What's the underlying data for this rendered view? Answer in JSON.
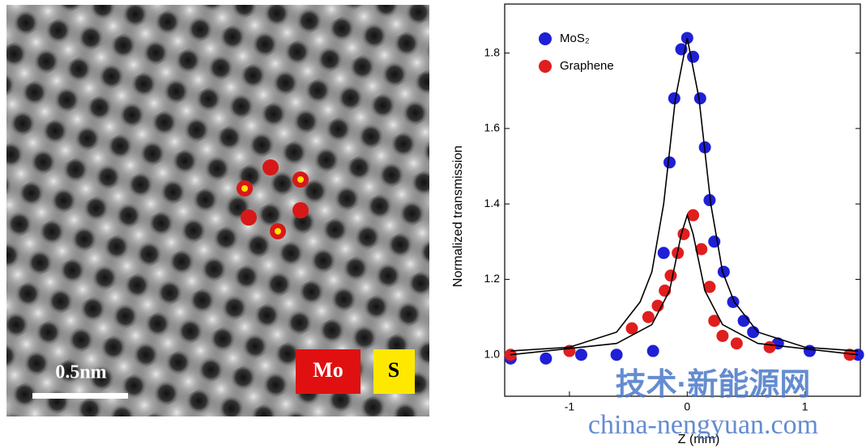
{
  "image": {
    "scale_bar": "0.5nm",
    "legend": [
      "Mo",
      "S"
    ]
  },
  "watermark": {
    "line1": "技术·新能源网",
    "line2": "china-nengyuan.com"
  },
  "chart_data": {
    "type": "scatter",
    "x_label": "Z (mm)",
    "y_label": "Normalized transmission",
    "xlim": [
      -1.55,
      1.47
    ],
    "ylim": [
      0.89,
      1.93
    ],
    "xticks": [
      -1,
      0,
      1
    ],
    "yticks": [
      {
        "value": 1.0,
        "label": "1.0"
      },
      {
        "value": 1.2,
        "label": "1.2"
      },
      {
        "value": 1.4,
        "label": "1.4"
      },
      {
        "value": 1.6,
        "label": "1.6"
      },
      {
        "value": 1.8,
        "label": "1.8"
      }
    ],
    "legend_position": "upper left",
    "series": [
      {
        "name": "MoS₂",
        "color": "#1f1fd6",
        "x": [
          -1.5,
          -1.2,
          -0.9,
          -0.6,
          -0.29,
          -0.2,
          -0.15,
          -0.11,
          -0.05,
          0,
          0.05,
          0.11,
          0.15,
          0.19,
          0.23,
          0.31,
          0.39,
          0.48,
          0.56,
          0.77,
          1.04,
          1.45
        ],
        "values": [
          0.99,
          0.99,
          1.0,
          1.0,
          1.01,
          1.27,
          1.51,
          1.68,
          1.81,
          1.84,
          1.79,
          1.68,
          1.55,
          1.41,
          1.3,
          1.22,
          1.14,
          1.09,
          1.06,
          1.03,
          1.01,
          1.0
        ]
      },
      {
        "name": "Graphene",
        "color": "#e01e1e",
        "x": [
          -1.5,
          -1.0,
          -0.47,
          -0.33,
          -0.25,
          -0.19,
          -0.14,
          -0.08,
          -0.03,
          0.05,
          0.12,
          0.19,
          0.23,
          0.3,
          0.42,
          0.7,
          1.38
        ],
        "values": [
          1.0,
          1.01,
          1.07,
          1.1,
          1.13,
          1.17,
          1.21,
          1.27,
          1.32,
          1.37,
          1.28,
          1.18,
          1.09,
          1.05,
          1.03,
          1.02,
          1.0
        ]
      }
    ],
    "fits": [
      {
        "color": "#000000",
        "x": [
          -1.5,
          -1.0,
          -0.6,
          -0.4,
          -0.3,
          -0.2,
          -0.1,
          0,
          0.1,
          0.2,
          0.3,
          0.4,
          0.6,
          1.0,
          1.45
        ],
        "values": [
          1.01,
          1.02,
          1.06,
          1.14,
          1.22,
          1.4,
          1.68,
          1.84,
          1.68,
          1.4,
          1.22,
          1.14,
          1.06,
          1.02,
          1.01
        ]
      },
      {
        "color": "#000000",
        "x": [
          -1.5,
          -0.6,
          -0.3,
          -0.15,
          -0.05,
          0,
          0.05,
          0.15,
          0.3,
          0.6,
          1.45
        ],
        "values": [
          1.0,
          1.03,
          1.08,
          1.17,
          1.32,
          1.37,
          1.32,
          1.17,
          1.08,
          1.03,
          1.0
        ]
      }
    ]
  }
}
